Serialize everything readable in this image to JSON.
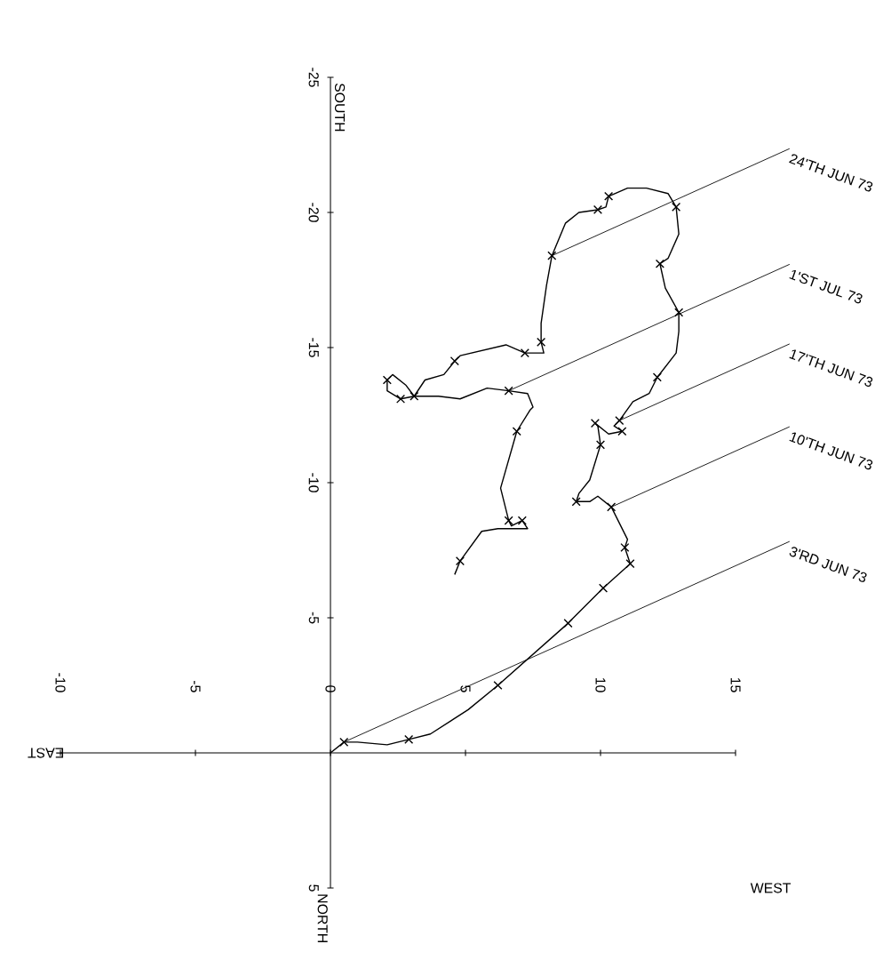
{
  "chart_data": {
    "type": "line",
    "xlabel": "WEST",
    "ylabel": "SOUTH",
    "xlim": [
      -10,
      15
    ],
    "ylim": [
      5,
      -25
    ],
    "xticks": [
      -10,
      -5,
      0,
      5,
      10,
      15
    ],
    "yticks": [
      5,
      -5,
      -10,
      -15,
      -20,
      -25
    ],
    "series": [
      {
        "color": "#000000",
        "x": [
          0,
          0.5,
          1.0,
          2.1,
          2.9,
          3.7,
          5.1,
          6.2,
          8.8,
          10.1,
          11.1,
          10.9,
          11.0,
          10.4,
          9.9,
          9.6,
          9.1,
          9.2,
          9.6,
          10.0,
          9.9,
          9.8,
          10.3,
          10.8,
          10.5,
          10.7,
          11.2,
          11.8,
          12.1,
          12.8,
          12.9,
          12.9,
          12.4,
          12.2,
          12.5,
          12.9,
          12.8,
          12.5,
          11.7,
          11.0,
          10.3,
          10.2,
          9.9,
          9.2,
          8.7,
          8.2,
          8.0,
          7.8,
          7.8,
          7.9,
          7.2,
          6.5,
          4.8,
          4.6,
          4.2,
          3.5,
          3.1,
          2.8,
          2.3,
          2.1,
          2.1,
          2.6,
          3.1,
          4.0,
          4.8,
          5.8,
          6.6,
          7.3,
          7.5,
          7.4,
          6.9,
          6.3,
          6.6,
          6.7,
          7.1,
          7.3,
          6.2,
          5.6,
          4.8,
          4.6
        ],
        "values": [
          0,
          -0.4,
          -0.4,
          -0.3,
          -0.5,
          -0.7,
          -1.6,
          -2.5,
          -4.8,
          -6.1,
          -7.0,
          -7.6,
          -7.9,
          -9.1,
          -9.5,
          -9.3,
          -9.3,
          -9.6,
          -10.1,
          -11.4,
          -12.1,
          -12.2,
          -11.8,
          -11.9,
          -12.1,
          -12.3,
          -13.0,
          -13.3,
          -13.9,
          -14.8,
          -15.6,
          -16.3,
          -17.2,
          -18.1,
          -18.3,
          -19.2,
          -20.2,
          -20.7,
          -20.9,
          -20.9,
          -20.6,
          -20.2,
          -20.1,
          -20.0,
          -19.6,
          -18.4,
          -17.3,
          -15.9,
          -15.2,
          -14.8,
          -14.8,
          -15.1,
          -14.7,
          -14.5,
          -14.0,
          -13.8,
          -13.2,
          -13.6,
          -14.0,
          -13.8,
          -13.4,
          -13.1,
          -13.2,
          -13.2,
          -13.1,
          -13.5,
          -13.4,
          -13.3,
          -12.8,
          -12.7,
          -11.9,
          -9.8,
          -8.6,
          -8.4,
          -8.6,
          -8.3,
          -8.3,
          -8.2,
          -7.1,
          -6.6
        ]
      },
      {
        "type": "scatter",
        "marker": "cross",
        "color": "#000000",
        "x": [
          0.5,
          2.9,
          6.2,
          8.8,
          10.1,
          11.1,
          10.9,
          10.4,
          9.1,
          10.0,
          9.8,
          10.8,
          10.7,
          12.1,
          12.9,
          12.2,
          12.8,
          10.3,
          9.9,
          8.2,
          7.8,
          7.2,
          4.6,
          3.1,
          2.1,
          2.6,
          6.6,
          6.9,
          6.6,
          7.1,
          4.8
        ],
        "values": [
          -0.4,
          -0.5,
          -2.5,
          -4.8,
          -6.1,
          -7.0,
          -7.6,
          -9.1,
          -9.3,
          -11.4,
          -12.2,
          -11.9,
          -12.3,
          -13.9,
          -16.3,
          -18.1,
          -20.2,
          -20.6,
          -20.1,
          -18.4,
          -15.2,
          -14.8,
          -14.5,
          -13.2,
          -13.8,
          -13.1,
          -13.4,
          -11.9,
          -8.6,
          -8.6,
          -7.1
        ]
      }
    ],
    "annotations": [
      {
        "text": "3'RD JUN 73",
        "x": 0.5,
        "y": -0.4
      },
      {
        "text": "10'TH JUN 73",
        "x": 10.4,
        "y": -9.1
      },
      {
        "text": "17'TH JUN 73",
        "x": 10.7,
        "y": -12.3
      },
      {
        "text": "1'ST JUL 73",
        "x": 6.6,
        "y": -13.4
      },
      {
        "text": "24'TH JUN 73",
        "x": 8.2,
        "y": -18.4
      },
      "EAST",
      "NORTH"
    ]
  }
}
